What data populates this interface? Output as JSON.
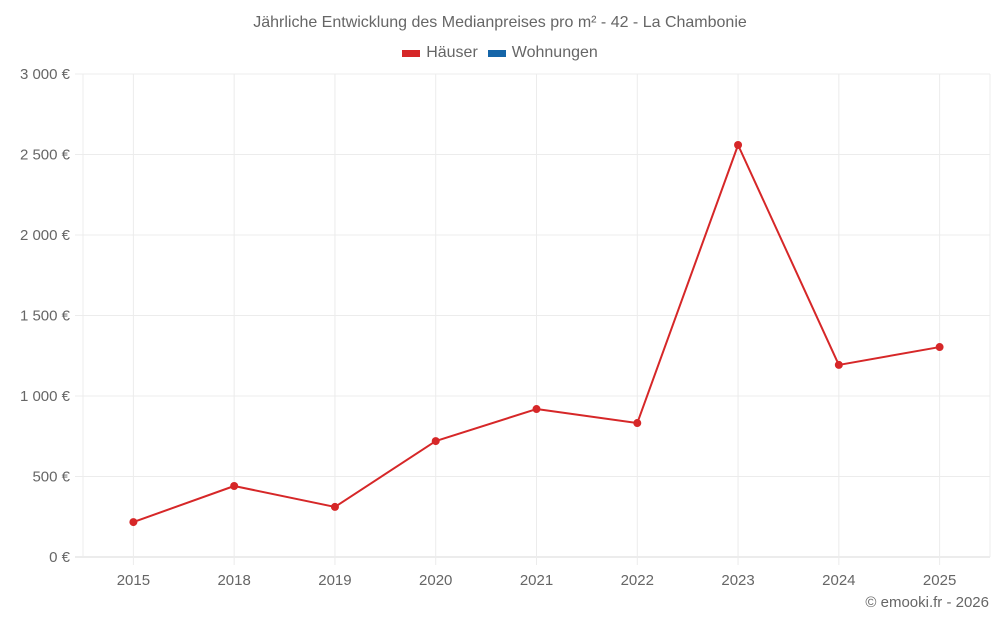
{
  "chart": {
    "title": "Jährliche Entwicklung des Medianpreises pro m² - 42 - La Chambonie",
    "legend": [
      {
        "label": "Häuser",
        "color": "#d62728"
      },
      {
        "label": "Wohnungen",
        "color": "#1565a8"
      }
    ],
    "credit": "© emooki.fr - 2026"
  },
  "chart_data": {
    "type": "line",
    "title": "Jährliche Entwicklung des Medianpreises pro m² - 42 - La Chambonie",
    "xlabel": "",
    "ylabel": "",
    "categories": [
      "2015",
      "2018",
      "2019",
      "2020",
      "2021",
      "2022",
      "2023",
      "2024",
      "2025"
    ],
    "series": [
      {
        "name": "Häuser",
        "color": "#d62728",
        "values": [
          217,
          441,
          311,
          720,
          919,
          832,
          2559,
          1193,
          1304
        ]
      },
      {
        "name": "Wohnungen",
        "color": "#1565a8",
        "values": []
      }
    ],
    "ylim": [
      0,
      3000
    ],
    "yticks": [
      0,
      500,
      1000,
      1500,
      2000,
      2500,
      3000
    ],
    "ytick_labels": [
      "0 €",
      "500 €",
      "1 000 €",
      "1 500 €",
      "2 000 €",
      "2 500 €",
      "3 000 €"
    ],
    "grid": true,
    "legend_position": "top"
  }
}
